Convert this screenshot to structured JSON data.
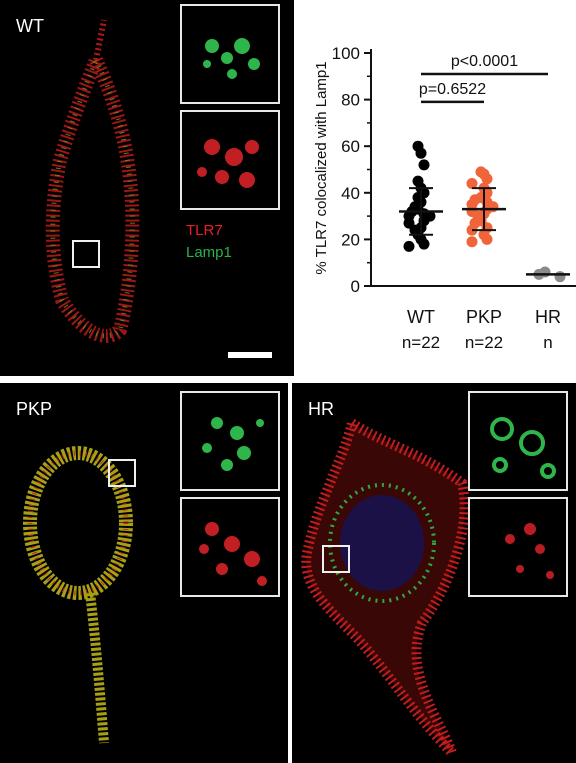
{
  "panels": {
    "wt": {
      "label": "WT"
    },
    "pkp": {
      "label": "PKP"
    },
    "hr": {
      "label": "HR"
    }
  },
  "legend": {
    "tlr7": "TLR7",
    "tlr7_color": "#e8202a",
    "lamp1": "Lamp1",
    "lamp1_color": "#27b34a"
  },
  "chart_data": {
    "type": "scatter",
    "ylabel": "% TLR7 colocalized with Lamp1",
    "ylim": [
      0,
      100
    ],
    "yticks": [
      0,
      20,
      40,
      60,
      80,
      100
    ],
    "categories": [
      "WT",
      "PKP",
      "HR"
    ],
    "counts": [
      "n=22",
      "n=22",
      "n"
    ],
    "groups": [
      {
        "category": "WT",
        "color": "#000000",
        "values": [
          60,
          57,
          52,
          45,
          42,
          40,
          38,
          36,
          34,
          33,
          32,
          31,
          30,
          30,
          28,
          27,
          25,
          24,
          22,
          20,
          18,
          17
        ],
        "mean": 32,
        "sd_low": 22,
        "sd_high": 42
      },
      {
        "category": "PKP",
        "color": "#f0643a",
        "values": [
          49,
          48,
          46,
          44,
          42,
          40,
          38,
          37,
          36,
          35,
          34,
          33,
          32,
          31,
          30,
          28,
          27,
          25,
          24,
          22,
          20,
          19
        ],
        "mean": 33,
        "sd_low": 24,
        "sd_high": 42
      },
      {
        "category": "HR",
        "color": "#8a8a8a",
        "values": [
          6,
          5,
          4
        ],
        "mean": 5
      }
    ],
    "annotations": [
      {
        "text": "p=0.6522",
        "from": "WT",
        "to": "PKP",
        "y": 79
      },
      {
        "text": "p<0.0001",
        "from": "WT",
        "to": "HR",
        "y": 91
      }
    ]
  }
}
